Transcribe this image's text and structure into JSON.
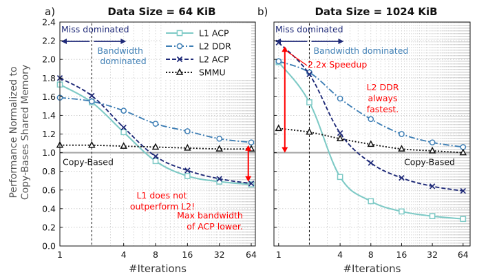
{
  "figure": {
    "ylabel_line1": "Performance Normalized to",
    "ylabel_line2": "Copy-Bases Shared Memory"
  },
  "colors": {
    "L1 ACP": "#7ecac6",
    "L2 DDR": "#3f7fb5",
    "L2 ACP": "#1f2a78",
    "SMMU": "#111111",
    "baseline": "#a6a6a6",
    "annotation": "#ff0000",
    "regime": "#1f2a78"
  },
  "chart_data": [
    {
      "panel_label": "a)",
      "type": "line",
      "title": "Data Size = 64 KiB",
      "xlabel": "#Iterations",
      "ylabel": "Performance Normalized to Copy-Bases Shared Memory",
      "x_scale": "log2",
      "xlim": [
        1,
        70
      ],
      "ylim": [
        0.0,
        2.4
      ],
      "xticks": [
        1,
        4,
        8,
        16,
        32,
        64
      ],
      "yticks": [
        0.0,
        0.2,
        0.4,
        0.6,
        0.8,
        1.0,
        1.2,
        1.4,
        1.6,
        1.8,
        2.0,
        2.2,
        2.4
      ],
      "grid": true,
      "legend": {
        "position": "top-right",
        "entries": [
          "L1 ACP",
          "L2 DDR",
          "L2 ACP",
          "SMMU"
        ]
      },
      "baseline": {
        "y": 1.0,
        "label": "Copy-Based"
      },
      "boundary_x": 2,
      "regime_left": "Miss dominated",
      "regime_right": "Bandwidth dominated",
      "series": [
        {
          "name": "L1 ACP",
          "marker": "square",
          "x": [
            1,
            2,
            4,
            8,
            16,
            32,
            64
          ],
          "y": [
            1.73,
            1.54,
            1.22,
            0.91,
            0.75,
            0.69,
            0.66
          ]
        },
        {
          "name": "L2 DDR",
          "marker": "circle",
          "x": [
            1,
            2,
            4,
            8,
            16,
            32,
            64
          ],
          "y": [
            1.59,
            1.55,
            1.45,
            1.31,
            1.23,
            1.15,
            1.11
          ]
        },
        {
          "name": "L2 ACP",
          "marker": "x",
          "x": [
            1,
            2,
            4,
            8,
            16,
            32,
            64
          ],
          "y": [
            1.8,
            1.61,
            1.27,
            0.96,
            0.81,
            0.72,
            0.67
          ]
        },
        {
          "name": "SMMU",
          "marker": "triangle",
          "x": [
            1,
            2,
            4,
            8,
            16,
            32,
            64
          ],
          "y": [
            1.08,
            1.08,
            1.07,
            1.06,
            1.05,
            1.04,
            1.04
          ]
        }
      ],
      "annotations": [
        {
          "text_lines": [
            "L1 does not",
            "outperform L2!"
          ]
        },
        {
          "text_lines": [
            "Max bandwidth",
            "of ACP lower."
          ],
          "arrow_x": 60,
          "arrow_y": [
            0.69,
            1.08
          ]
        }
      ]
    },
    {
      "panel_label": "b)",
      "type": "line",
      "title": "Data Size = 1024 KiB",
      "xlabel": "#Iterations",
      "x_scale": "log2",
      "xlim": [
        0.9,
        75
      ],
      "ylim": [
        0.0,
        2.4
      ],
      "xticks": [
        1,
        4,
        8,
        16,
        32,
        64
      ],
      "yticks": [
        0.0,
        0.2,
        0.4,
        0.6,
        0.8,
        1.0,
        1.2,
        1.4,
        1.6,
        1.8,
        2.0,
        2.2,
        2.4
      ],
      "grid": true,
      "baseline": {
        "y": 1.0,
        "label": "Copy-Based"
      },
      "boundary_x": 2,
      "regime_left": "Miss dominated",
      "regime_right": "Bandwidth dominated",
      "series": [
        {
          "name": "L1 ACP",
          "marker": "square",
          "x": [
            1,
            2,
            4,
            8,
            16,
            32,
            64
          ],
          "y": [
            1.97,
            1.54,
            0.74,
            0.48,
            0.37,
            0.32,
            0.29
          ]
        },
        {
          "name": "L2 DDR",
          "marker": "circle",
          "x": [
            1,
            2,
            4,
            8,
            16,
            32,
            64
          ],
          "y": [
            1.98,
            1.86,
            1.58,
            1.36,
            1.2,
            1.11,
            1.06
          ]
        },
        {
          "name": "L2 ACP",
          "marker": "x",
          "x": [
            1,
            2,
            4,
            8,
            16,
            32,
            64
          ],
          "y": [
            2.18,
            1.84,
            1.21,
            0.89,
            0.73,
            0.64,
            0.59
          ]
        },
        {
          "name": "SMMU",
          "marker": "triangle",
          "x": [
            1,
            2,
            4,
            8,
            16,
            32,
            64
          ],
          "y": [
            1.26,
            1.22,
            1.15,
            1.09,
            1.04,
            1.02,
            1.0
          ]
        }
      ],
      "annotations": [
        {
          "text_lines": [
            "2.2x Speedup"
          ],
          "arrow_x": 1.15,
          "arrow_y": [
            1.0,
            2.14
          ]
        },
        {
          "text_lines": [
            "L2 DDR",
            "always",
            "fastest."
          ]
        }
      ]
    }
  ]
}
